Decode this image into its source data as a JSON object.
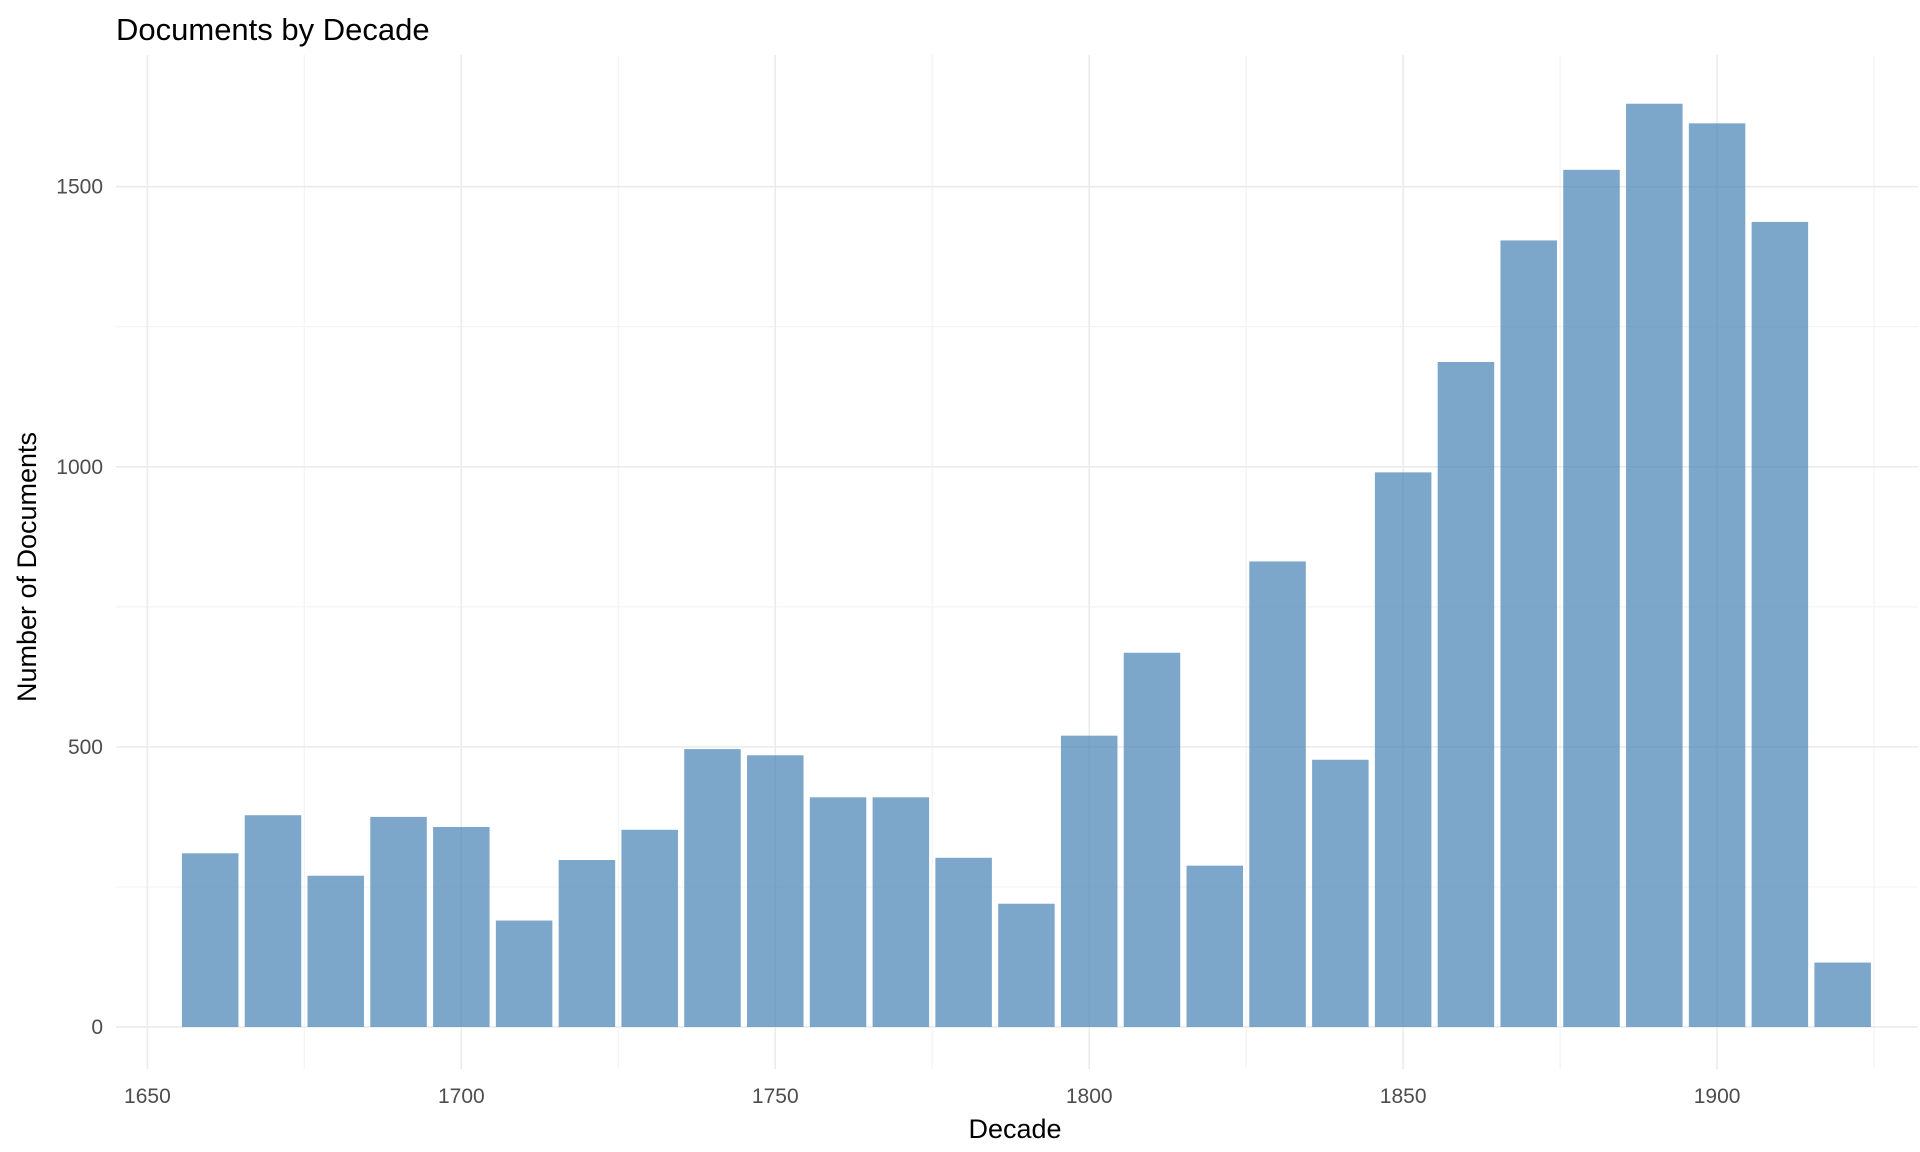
{
  "chart_data": {
    "type": "bar",
    "title": "Documents by Decade",
    "xlabel": "Decade",
    "ylabel": "Number of Documents",
    "x": [
      1660,
      1670,
      1680,
      1690,
      1700,
      1710,
      1720,
      1730,
      1740,
      1750,
      1760,
      1770,
      1780,
      1790,
      1800,
      1810,
      1820,
      1830,
      1840,
      1850,
      1860,
      1870,
      1880,
      1890,
      1900,
      1910,
      1920
    ],
    "values": [
      310,
      378,
      270,
      375,
      357,
      190,
      298,
      352,
      496,
      485,
      410,
      410,
      302,
      220,
      520,
      668,
      288,
      831,
      477,
      990,
      1187,
      1404,
      1530,
      1648,
      1613,
      1437,
      115
    ],
    "xlim": [
      1645,
      1932
    ],
    "ylim": [
      -75,
      1735
    ],
    "xticks": [
      1650,
      1700,
      1750,
      1800,
      1850,
      1900
    ],
    "xtick_labels": [
      "1650",
      "1700",
      "1750",
      "1800",
      "1850",
      "1900"
    ],
    "yticks": [
      0,
      500,
      1000,
      1500
    ],
    "ytick_labels": [
      "0",
      "500",
      "1000",
      "1500"
    ],
    "bar_color": "#4682b4",
    "bar_opacity": 0.7,
    "grid": true,
    "legend": "none"
  }
}
